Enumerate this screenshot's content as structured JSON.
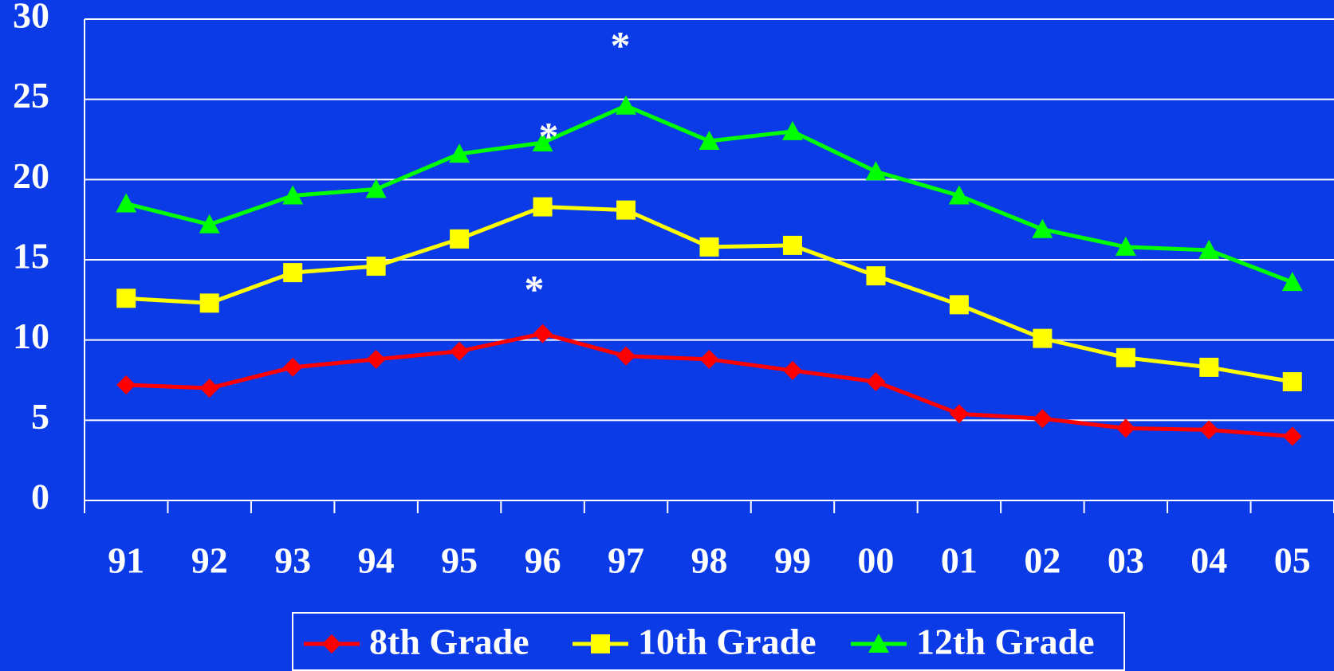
{
  "chart_data": {
    "type": "line",
    "categories": [
      "91",
      "92",
      "93",
      "94",
      "95",
      "96",
      "97",
      "98",
      "99",
      "00",
      "01",
      "02",
      "03",
      "04",
      "05"
    ],
    "series": [
      {
        "name": "8th Grade",
        "color": "#ff0000",
        "marker": "diamond",
        "values": [
          7.2,
          7.0,
          8.3,
          8.8,
          9.3,
          10.4,
          9.0,
          8.8,
          8.1,
          7.4,
          5.4,
          5.1,
          4.5,
          4.4,
          4.0
        ]
      },
      {
        "name": "10th Grade",
        "color": "#ffff00",
        "marker": "square",
        "values": [
          12.6,
          12.3,
          14.2,
          14.6,
          16.3,
          18.3,
          18.1,
          15.8,
          15.9,
          14.0,
          12.2,
          10.1,
          8.9,
          8.3,
          7.4
        ]
      },
      {
        "name": "12th Grade",
        "color": "#00ff00",
        "marker": "triangle",
        "values": [
          18.5,
          17.2,
          19.0,
          19.4,
          21.6,
          22.3,
          24.6,
          22.4,
          23.0,
          20.5,
          19.0,
          16.9,
          15.8,
          15.6,
          13.6
        ]
      }
    ],
    "annotations": [
      "*",
      "*",
      "*"
    ],
    "ylim": [
      0,
      30
    ],
    "yticks": [
      0,
      5,
      10,
      15,
      20,
      25,
      30
    ],
    "grid": true,
    "legend": "bottom"
  }
}
